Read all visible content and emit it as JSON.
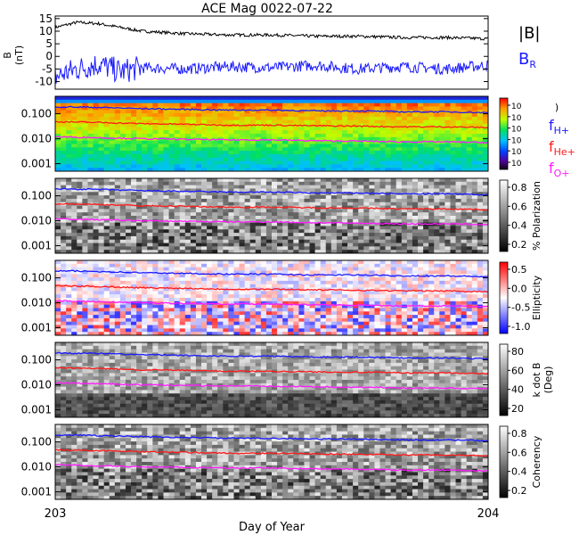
{
  "title": "ACE Mag 0022-07-22",
  "xaxis": {
    "label": "Day of Year",
    "start_label": "203",
    "end_label": "204",
    "range": [
      203,
      204
    ]
  },
  "legend_top": {
    "b_total": "|B|",
    "b_r": "B",
    "b_r_sub": "R"
  },
  "colors": {
    "black": "#000000",
    "blue": "#1a1aff",
    "red": "#ff1a1a",
    "magenta": "#ff1aff"
  },
  "chart_data": [
    {
      "type": "line",
      "panel": "B field",
      "ylabel_main": "B",
      "ylabel_unit": "(nT)",
      "yticks": [
        "15",
        "10",
        "5",
        "0",
        "-5",
        "-10"
      ],
      "ylim": [
        -13,
        16
      ],
      "series": [
        {
          "name": "|B|",
          "color": "black",
          "x": [
            203.0,
            203.05,
            203.1,
            203.15,
            203.2,
            203.3,
            203.4,
            203.5,
            203.6,
            203.7,
            203.8,
            203.9,
            204.0
          ],
          "values": [
            11.5,
            13.5,
            13.0,
            11.5,
            10.0,
            9.0,
            8.5,
            8.5,
            8.0,
            8.0,
            7.5,
            7.5,
            7.0
          ]
        },
        {
          "name": "B_R",
          "color": "blue",
          "x": [
            203.0,
            203.05,
            203.1,
            203.15,
            203.2,
            203.3,
            203.4,
            203.5,
            203.6,
            203.7,
            203.8,
            203.9,
            204.0
          ],
          "values": [
            -8.0,
            -5.0,
            -3.0,
            -6.0,
            -4.5,
            -5.0,
            -4.0,
            -4.5,
            -3.5,
            -5.0,
            -4.0,
            -5.0,
            -3.5
          ]
        }
      ]
    },
    {
      "type": "heatmap",
      "panel": "power",
      "yticks": [
        "0.100",
        "0.010",
        "0.001"
      ],
      "colorbar_ticks": [
        "10",
        "10",
        "10",
        "10",
        "10",
        "10"
      ],
      "colorbar_label": ")",
      "legend": [
        {
          "f": "f",
          "sub": "H+",
          "color": "blue"
        },
        {
          "f": "f",
          "sub": "He+",
          "color": "red"
        },
        {
          "f": "f",
          "sub": "O+",
          "color": "magenta"
        }
      ]
    },
    {
      "type": "heatmap",
      "panel": "polarization",
      "yticks": [
        "0.100",
        "0.010",
        "0.001"
      ],
      "colorbar_ticks": [
        "0.8",
        "0.6",
        "0.4",
        "0.2"
      ],
      "colorbar_label": "% Polarization"
    },
    {
      "type": "heatmap",
      "panel": "ellipticity",
      "yticks": [
        "0.100",
        "0.010",
        "0.001"
      ],
      "colorbar_ticks": [
        "0.5",
        "0.0",
        "-0.5",
        "-1.0"
      ],
      "colorbar_label": "Ellipticity"
    },
    {
      "type": "heatmap",
      "panel": "kdotB",
      "yticks": [
        "0.100",
        "0.010",
        "0.001"
      ],
      "colorbar_ticks": [
        "80",
        "60",
        "40",
        "20"
      ],
      "colorbar_label": "k dot B",
      "colorbar_label2": "(Deg)"
    },
    {
      "type": "heatmap",
      "panel": "coherency",
      "yticks": [
        "0.100",
        "0.010",
        "0.001"
      ],
      "colorbar_ticks": [
        "0.8",
        "0.6",
        "0.4",
        "0.2"
      ],
      "colorbar_label": "Coherency"
    }
  ],
  "gyro_frequencies": {
    "x": [
      203.0,
      203.1,
      203.2,
      203.3,
      203.4,
      203.5,
      203.6,
      203.7,
      203.8,
      203.9,
      204.0
    ],
    "H+": [
      0.19,
      0.18,
      0.16,
      0.15,
      0.14,
      0.14,
      0.13,
      0.13,
      0.12,
      0.12,
      0.11
    ],
    "He+": [
      0.048,
      0.045,
      0.04,
      0.038,
      0.035,
      0.035,
      0.033,
      0.032,
      0.03,
      0.03,
      0.028
    ],
    "O+": [
      0.012,
      0.011,
      0.01,
      0.0095,
      0.009,
      0.009,
      0.0083,
      0.008,
      0.0075,
      0.0075,
      0.007
    ]
  }
}
